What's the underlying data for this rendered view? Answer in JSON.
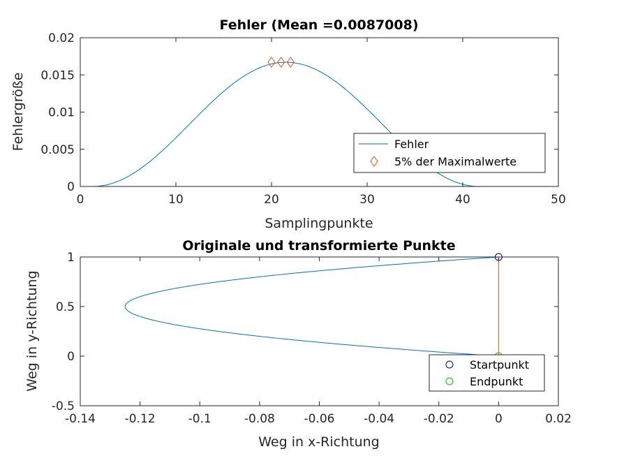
{
  "chart_data": [
    {
      "type": "line",
      "title": "Fehler (Mean =0.0087008)",
      "xlabel": "Samplingpunkte",
      "ylabel": "Fehlergröße",
      "xlim": [
        0,
        50
      ],
      "ylim": [
        0,
        0.02
      ],
      "xticks": [
        0,
        10,
        20,
        30,
        40,
        50
      ],
      "xtick_labels": [
        "0",
        "10",
        "20",
        "30",
        "40",
        "50"
      ],
      "yticks": [
        0,
        0.005,
        0.01,
        0.015,
        0.02
      ],
      "ytick_labels": [
        "0",
        "0.005",
        "0.01",
        "0.015",
        "0.02"
      ],
      "grid": false,
      "legend_position": "east",
      "series": [
        {
          "name": "Fehler",
          "style": "line",
          "color": "#0072BD",
          "x": [
            1,
            2,
            3,
            4,
            5,
            6,
            7,
            8,
            9,
            10,
            11,
            12,
            13,
            14,
            15,
            16,
            17,
            18,
            19,
            20,
            21,
            22,
            23,
            24,
            25,
            26,
            27,
            28,
            29,
            30,
            31,
            32,
            33,
            34,
            35,
            36,
            37,
            38,
            39,
            40,
            41,
            42
          ],
          "y": [
            0,
            0.00011,
            0.00043,
            0.00097,
            0.00169,
            0.00259,
            0.00364,
            0.00481,
            0.00607,
            0.00739,
            0.00873,
            0.01006,
            0.01134,
            0.01254,
            0.01363,
            0.01458,
            0.01536,
            0.01596,
            0.01637,
            0.01659,
            0.01661,
            0.01643,
            0.01606,
            0.01551,
            0.0148,
            0.01393,
            0.01293,
            0.01183,
            0.01064,
            0.0094,
            0.00815,
            0.0069,
            0.00569,
            0.00454,
            0.00349,
            0.00254,
            0.00172,
            0.00105,
            0.00054,
            0.00019,
            2e-05,
            0
          ]
        },
        {
          "name": "5% der Maximalwerte",
          "style": "marker-diamond",
          "color": "#D95319",
          "x": [
            20,
            21,
            22
          ],
          "y": [
            0.0167,
            0.0167,
            0.0167
          ]
        }
      ]
    },
    {
      "type": "line",
      "title": "Originale und transformierte Punkte",
      "xlabel": "Weg in x-Richtung",
      "ylabel": "Weg in y-Richtung",
      "xlim": [
        -0.14,
        0.02
      ],
      "ylim": [
        -0.5,
        1
      ],
      "xticks": [
        -0.14,
        -0.12,
        -0.1,
        -0.08,
        -0.06,
        -0.04,
        -0.02,
        0,
        0.02
      ],
      "xtick_labels": [
        "-0.14",
        "-0.12",
        "-0.1",
        "-0.08",
        "-0.06",
        "-0.04",
        "-0.02",
        "0",
        "0.02"
      ],
      "yticks": [
        -0.5,
        0,
        0.5,
        1
      ],
      "ytick_labels": [
        "-0.5",
        "0",
        "0.5",
        "1"
      ],
      "grid": false,
      "legend_position": "southeast",
      "series": [
        {
          "style": "line",
          "color": "#0072BD",
          "x": [
            0,
            -0.0095,
            -0.018,
            -0.0255,
            -0.032,
            -0.0375,
            -0.042,
            -0.0455,
            -0.048,
            -0.0495,
            -0.05,
            -0.0495,
            -0.048,
            -0.0455,
            -0.042,
            -0.0375,
            -0.032,
            -0.0255,
            -0.018,
            -0.0095,
            0
          ],
          "y": [
            1,
            0.95,
            0.9,
            0.85,
            0.8,
            0.75,
            0.7,
            0.65,
            0.6,
            0.55,
            0.5,
            0.45,
            0.4,
            0.35,
            0.3,
            0.25,
            0.2,
            0.15,
            0.1,
            0.05,
            0
          ],
          "x_scale": 2.5
        },
        {
          "style": "line",
          "color": "#D95319",
          "x": [
            0,
            0
          ],
          "y": [
            1,
            0
          ]
        },
        {
          "name": "Startpunkt",
          "style": "marker-circle",
          "color": "#00007F",
          "x": [
            0
          ],
          "y": [
            1
          ]
        },
        {
          "name": "Endpunkt",
          "style": "marker-circle",
          "color": "#00CC00",
          "x": [
            0
          ],
          "y": [
            0
          ]
        }
      ]
    }
  ]
}
